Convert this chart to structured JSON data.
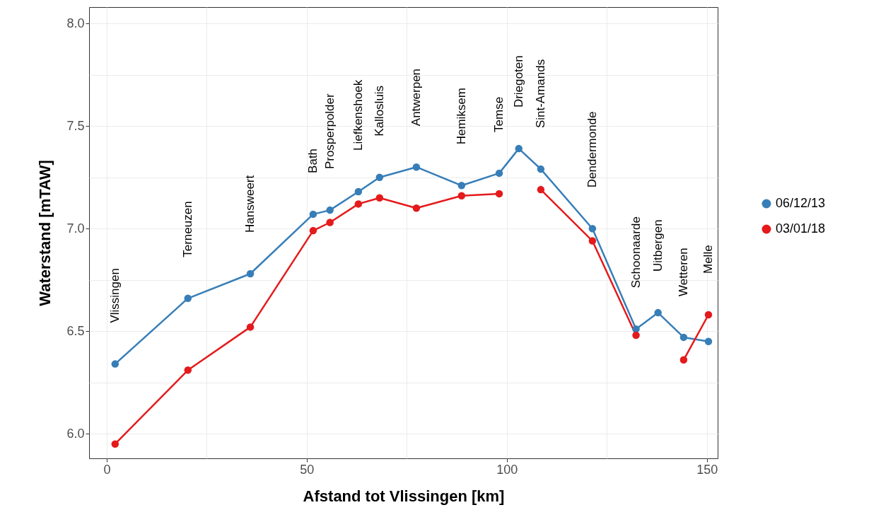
{
  "chart_data": {
    "type": "line",
    "xlabel": "Afstand tot Vlissingen [km]",
    "ylabel": "Waterstand [mTAW]",
    "x": [
      2.1,
      20.3,
      35.9,
      51.6,
      55.8,
      62.9,
      68.2,
      77.4,
      88.7,
      98.1,
      103,
      108.5,
      121.4,
      132.3,
      137.8,
      144.2,
      150.4
    ],
    "series": [
      {
        "name": "06/12/13",
        "color": "#377eb8",
        "values": [
          6.34,
          6.66,
          6.78,
          7.07,
          7.09,
          7.18,
          7.25,
          7.3,
          7.21,
          7.27,
          7.39,
          7.29,
          7.0,
          6.51,
          6.59,
          6.47,
          6.45
        ]
      },
      {
        "name": "03/01/18",
        "color": "#e41a1c",
        "values": [
          5.95,
          6.31,
          6.52,
          6.99,
          7.03,
          7.12,
          7.15,
          7.1,
          7.16,
          7.17,
          null,
          7.19,
          6.94,
          6.48,
          null,
          6.36,
          6.58
        ]
      }
    ],
    "xlim": [
      -4.4,
      152.7
    ],
    "ylim": [
      5.88,
      8.08
    ],
    "xticks": [
      0,
      {
        "value": 25,
        "label": null
      },
      50,
      {
        "value": 75,
        "label": null
      },
      100,
      {
        "value": 125,
        "label": null
      },
      150
    ],
    "yticks": [
      {
        "value": 6,
        "label": "6.0"
      },
      {
        "value": 6.25,
        "label": null
      },
      6.5,
      {
        "value": 6.75,
        "label": null
      },
      {
        "value": 7,
        "label": "7.0"
      },
      {
        "value": 7.25,
        "label": null
      },
      7.5,
      {
        "value": 7.75,
        "label": null
      },
      {
        "value": 8,
        "label": "8.0"
      }
    ],
    "grid": true,
    "legend": "right",
    "marker": "circle",
    "line_style": "solid",
    "annotations": [
      "Vlissingen",
      "Terneuzen",
      "Hansweert",
      "Bath",
      "Prosperpolder",
      "Liefkenshoek",
      "Kallosluis",
      "Antwerpen",
      "Hemiksem",
      "Temse",
      "Driegoten",
      "Sint-Amands",
      "Dendermonde",
      "Schoonaarde",
      "Uitbergen",
      "Wetteren",
      "Melle"
    ]
  }
}
